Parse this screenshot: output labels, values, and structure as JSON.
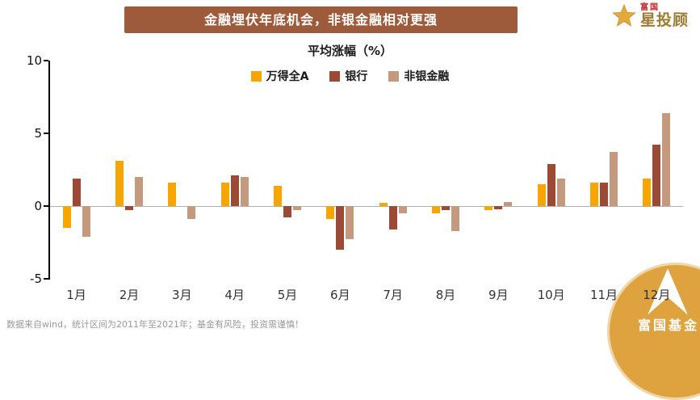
{
  "header": {
    "title": "金融埋伏年底机会，非银金融相对更强"
  },
  "logo": {
    "brand_small": "富国",
    "brand_main": "星投顾"
  },
  "chart_data": {
    "type": "bar",
    "title": "平均涨幅（%）",
    "categories": [
      "1月",
      "2月",
      "3月",
      "4月",
      "5月",
      "6月",
      "7月",
      "8月",
      "9月",
      "10月",
      "11月",
      "12月"
    ],
    "series": [
      {
        "name": "万得全A",
        "color": "#F7A600",
        "values": [
          -1.5,
          3.1,
          1.6,
          1.6,
          1.4,
          -0.9,
          0.2,
          -0.5,
          -0.3,
          1.5,
          1.6,
          1.9
        ]
      },
      {
        "name": "银行",
        "color": "#9A4A35",
        "values": [
          1.9,
          -0.3,
          0.0,
          2.1,
          -0.8,
          -3.0,
          -1.6,
          -0.3,
          -0.2,
          2.9,
          1.6,
          4.2
        ]
      },
      {
        "name": "非银金融",
        "color": "#C49A7E",
        "values": [
          -2.1,
          2.0,
          -0.9,
          2.0,
          -0.3,
          -2.3,
          -0.5,
          -1.7,
          0.3,
          1.9,
          3.7,
          6.4
        ]
      }
    ],
    "ylim": [
      -5,
      10
    ],
    "yticks": [
      10,
      5,
      0,
      -5
    ],
    "grid": false,
    "legend_position": "top",
    "xlabel": "",
    "ylabel": ""
  },
  "footer": {
    "note": "数据来自wind，统计区间为2011年至2021年；基金有风险，投资需谨慎！"
  },
  "watermark": {
    "text": "富国基金"
  }
}
